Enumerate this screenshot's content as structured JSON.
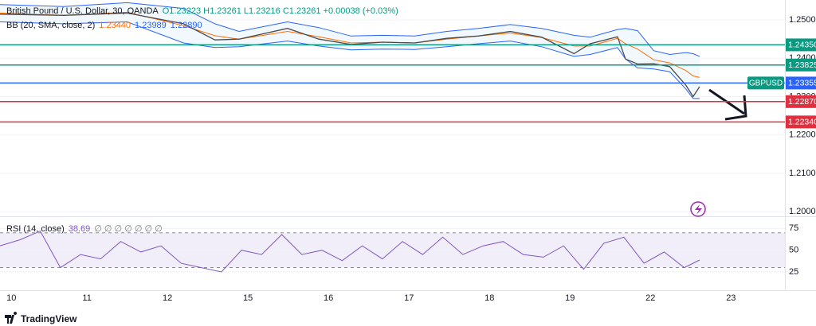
{
  "header": {
    "symbol": "British Pound / U.S. Dollar, 30, OANDA",
    "ohlc": "O1.23223 H1.23261 L1.23216 C1.23261 +0.00038 (+0.03%)",
    "bb_label": "BB (20, SMA, close, 2)",
    "bb_values": [
      "1.23440",
      "1.23989",
      "1.22890"
    ],
    "rsi_label": "RSI (14, close)",
    "rsi_value": "38.69",
    "rsi_extra": "∅ ∅ ∅ ∅ ∅ ∅ ∅"
  },
  "footer": {
    "brand": "TradingView"
  },
  "chart_data": [
    {
      "type": "line",
      "symbol_tag": "GBPUSD",
      "xlim": [
        -0.08,
        9.67
      ],
      "ylim": [
        1.1988,
        1.2552
      ],
      "xticks": [
        {
          "value": 0,
          "label": "10"
        },
        {
          "value": 1,
          "label": "11"
        },
        {
          "value": 2,
          "label": "12"
        },
        {
          "value": 3,
          "label": "15"
        },
        {
          "value": 4,
          "label": "16"
        },
        {
          "value": 5,
          "label": "17"
        },
        {
          "value": 6,
          "label": "18"
        },
        {
          "value": 7,
          "label": "19"
        },
        {
          "value": 8,
          "label": "22"
        },
        {
          "value": 9,
          "label": "23"
        }
      ],
      "yticks": [
        {
          "value": 1.25,
          "label": "1.25000"
        },
        {
          "value": 1.24,
          "label": "1.24000"
        },
        {
          "value": 1.23,
          "label": "1.23000"
        },
        {
          "value": 1.22,
          "label": "1.22000"
        },
        {
          "value": 1.21,
          "label": "1.21000"
        },
        {
          "value": 1.2,
          "label": "1.20000"
        }
      ],
      "levels": [
        {
          "value": 1.2435,
          "label": "1.24350",
          "color": "#089981"
        },
        {
          "value": 1.23825,
          "label": "1.23825",
          "color": "#089981"
        },
        {
          "value": 1.23355,
          "label": "1.23355",
          "color": "#2962ff"
        },
        {
          "value": 1.2287,
          "label": "1.22870",
          "color": "#e0303f"
        },
        {
          "value": 1.2234,
          "label": "1.22340",
          "color": "#e0303f"
        }
      ],
      "x": [
        -0.08,
        0.71,
        1.5,
        2.2,
        2.59,
        2.89,
        3.49,
        3.88,
        4.28,
        4.67,
        5.07,
        5.47,
        5.86,
        6.26,
        6.65,
        7.05,
        7.25,
        7.59,
        7.69,
        7.84,
        8.04,
        8.24,
        8.44,
        8.53,
        8.61
      ],
      "series": [
        {
          "color": "#2962ff",
          "values": [
            1.254,
            1.2535,
            1.2545,
            1.253,
            1.249,
            1.247,
            1.2495,
            1.248,
            1.2458,
            1.246,
            1.2458,
            1.247,
            1.2478,
            1.2488,
            1.2478,
            1.246,
            1.2455,
            1.2475,
            1.2478,
            1.2472,
            1.242,
            1.241,
            1.2415,
            1.2412,
            1.2405
          ]
        },
        {
          "color": "#ff6d00",
          "values": [
            1.2518,
            1.2512,
            1.252,
            1.2485,
            1.2459,
            1.245,
            1.247,
            1.2456,
            1.244,
            1.2442,
            1.244,
            1.245,
            1.2458,
            1.2466,
            1.2454,
            1.2432,
            1.2432,
            1.2452,
            1.2438,
            1.2424,
            1.2396,
            1.2388,
            1.2368,
            1.2354,
            1.235
          ]
        },
        {
          "color": "#2962ff",
          "values": [
            1.2495,
            1.249,
            1.2495,
            1.244,
            1.2428,
            1.243,
            1.2445,
            1.2432,
            1.2422,
            1.2424,
            1.2423,
            1.243,
            1.2438,
            1.2445,
            1.243,
            1.2405,
            1.241,
            1.2428,
            1.2398,
            1.2375,
            1.2372,
            1.2365,
            1.232,
            1.2295,
            1.2295
          ]
        },
        {
          "color": "#4a4a4a",
          "values": [
            1.2515,
            1.2512,
            1.2518,
            1.249,
            1.2448,
            1.245,
            1.2478,
            1.245,
            1.2436,
            1.2442,
            1.244,
            1.2452,
            1.2458,
            1.247,
            1.2455,
            1.2412,
            1.2438,
            1.2456,
            1.2398,
            1.2385,
            1.2386,
            1.2378,
            1.233,
            1.23,
            1.2326
          ]
        }
      ]
    },
    {
      "type": "line",
      "xlim": [
        -0.08,
        9.67
      ],
      "ylim": [
        4,
        89
      ],
      "yticks": [
        75,
        50,
        25
      ],
      "band": [
        30,
        70
      ],
      "x": [
        -0.08,
        0.17,
        0.42,
        0.67,
        0.92,
        1.17,
        1.42,
        1.67,
        1.92,
        2.17,
        2.42,
        2.67,
        2.92,
        3.17,
        3.42,
        3.67,
        3.92,
        4.17,
        4.42,
        4.67,
        4.92,
        5.17,
        5.42,
        5.67,
        5.92,
        6.17,
        6.42,
        6.67,
        6.92,
        7.17,
        7.42,
        7.67,
        7.92,
        8.17,
        8.42,
        8.61
      ],
      "series": [
        {
          "color": "#7e57c2",
          "values": [
            55,
            62,
            72,
            30,
            45,
            40,
            60,
            48,
            55,
            35,
            30,
            25,
            50,
            45,
            68,
            45,
            50,
            38,
            55,
            40,
            60,
            45,
            65,
            45,
            55,
            60,
            45,
            42,
            55,
            28,
            58,
            65,
            35,
            48,
            30,
            38.69
          ]
        }
      ]
    }
  ]
}
